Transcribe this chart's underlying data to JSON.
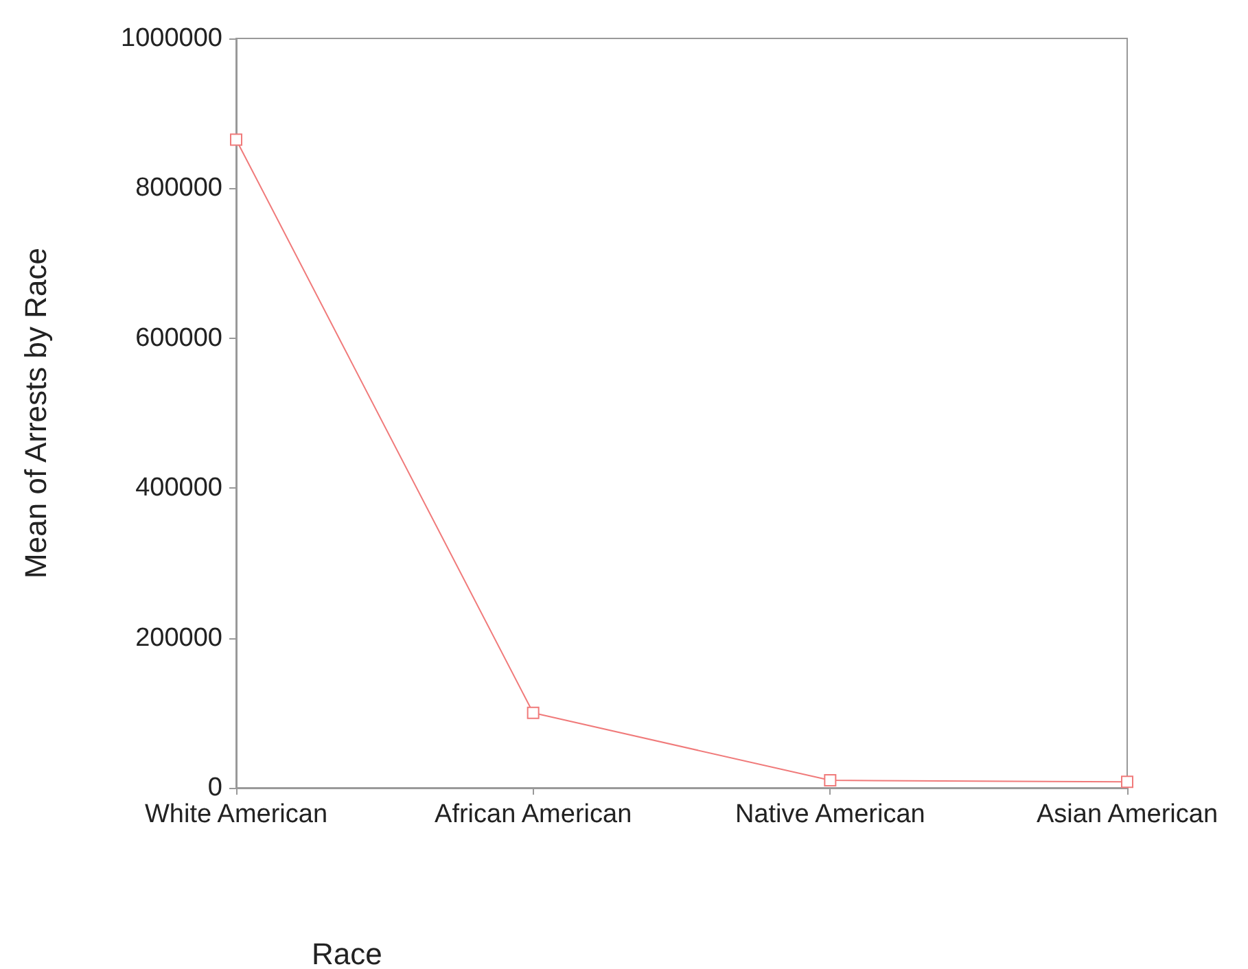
{
  "chart_data": {
    "type": "line",
    "xlabel": "Race",
    "ylabel": "Mean of Arrests by Race",
    "categories": [
      "White American",
      "African American",
      "Native American",
      "Asian American"
    ],
    "series": [
      {
        "color": "#f07a7a",
        "values": [
          865000,
          100000,
          10000,
          8000
        ]
      }
    ],
    "ylim": [
      0,
      1000000
    ],
    "yticks": [
      0,
      200000,
      400000,
      600000,
      800000,
      1000000
    ],
    "grid": false,
    "marker": "square",
    "line_style": "solid"
  }
}
